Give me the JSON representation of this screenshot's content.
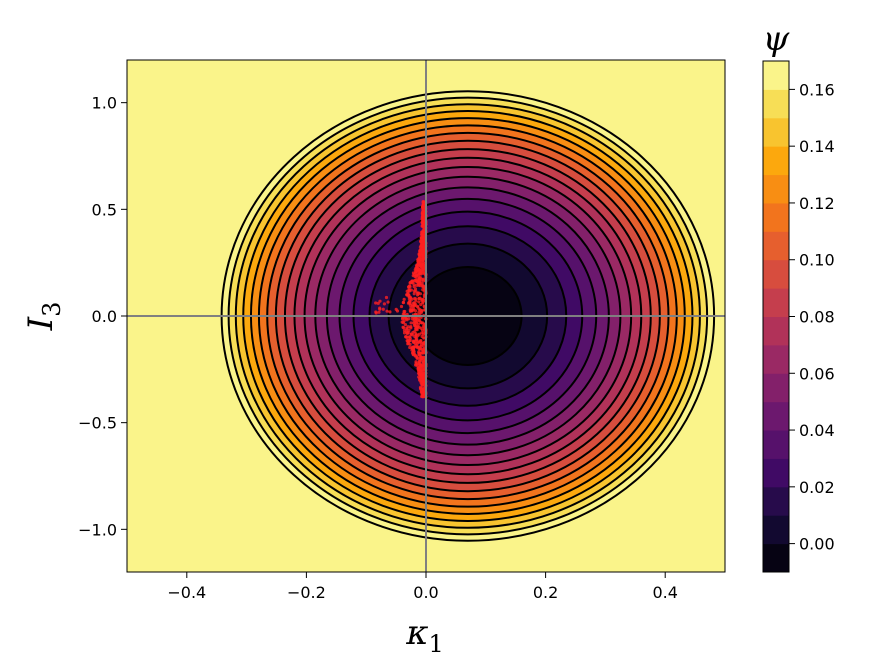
{
  "chart_data": {
    "type": "contour",
    "xlabel": "κ",
    "xlabel_sub": "1",
    "ylabel": "I",
    "ylabel_sub": "3",
    "xlim": [
      -0.5,
      0.5
    ],
    "ylim": [
      -1.2,
      1.2
    ],
    "x_ticks": [
      -0.4,
      -0.2,
      0.0,
      0.2,
      0.4
    ],
    "x_tick_labels": [
      "−0.4",
      "−0.2",
      "0.0",
      "0.2",
      "0.4"
    ],
    "y_ticks": [
      -1.0,
      -0.5,
      0.0,
      0.5,
      1.0
    ],
    "y_tick_labels": [
      "−1.0",
      "−0.5",
      "0.0",
      "0.5",
      "1.0"
    ],
    "reference_lines": {
      "x": 0.0,
      "y": 0.0,
      "color": "#808080"
    },
    "field": {
      "description_formula": "psi = 0.02*((k-0.07)/0.095)^2*... ellipse model",
      "center": [
        0.07,
        0.0
      ],
      "a_x": 0.095,
      "a_y": 0.243,
      "unit_value": 0.0095,
      "offset": -0.0085
    },
    "contour_levels": [
      -0.01,
      0.0,
      0.01,
      0.02,
      0.03,
      0.04,
      0.05,
      0.06,
      0.07,
      0.08,
      0.09,
      0.1,
      0.11,
      0.12,
      0.13,
      0.14,
      0.15,
      0.16,
      0.17
    ],
    "scatter": {
      "color": "#ff2020",
      "description": "red point cloud near k≈0, I3 in [-0.38, 0.54]",
      "x_range": [
        -0.09,
        0.0
      ],
      "y_range": [
        -0.38,
        0.54
      ]
    },
    "colorbar": {
      "title": "ψ",
      "min": -0.01,
      "max": 0.17,
      "ticks": [
        0.0,
        0.02,
        0.04,
        0.06,
        0.08,
        0.1,
        0.12,
        0.14,
        0.16
      ],
      "tick_labels": [
        "0.00",
        "0.02",
        "0.04",
        "0.06",
        "0.08",
        "0.10",
        "0.12",
        "0.14",
        "0.16"
      ],
      "colormap": "inferno"
    }
  }
}
